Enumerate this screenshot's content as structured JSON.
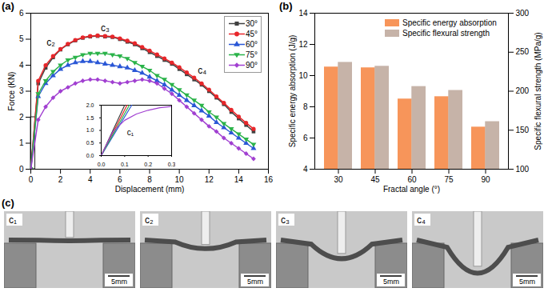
{
  "chart_data": [
    {
      "type": "line",
      "panel_label": "(a)",
      "x_label": "Displacement (mm)",
      "y_label": "Force (KN)",
      "xlim": [
        0,
        16
      ],
      "xticks": [
        0,
        2,
        4,
        6,
        8,
        10,
        12,
        14,
        16
      ],
      "ylim": [
        0,
        6
      ],
      "yticks": [
        0,
        1,
        2,
        3,
        4,
        5,
        6
      ],
      "legend": "top-right",
      "x": [
        0,
        0.5,
        1,
        1.5,
        2,
        2.5,
        3,
        3.5,
        4,
        4.5,
        5,
        5.5,
        6,
        6.5,
        7,
        7.5,
        8,
        8.5,
        9,
        9.5,
        10,
        10.5,
        11,
        11.5,
        12,
        12.5,
        13,
        13.5,
        14,
        14.5,
        15
      ],
      "series": [
        {
          "name": "30°",
          "color": "#404040",
          "marker": "square",
          "values": [
            0,
            3.3,
            3.9,
            4.3,
            4.6,
            4.8,
            4.95,
            5.05,
            5.1,
            5.12,
            5.1,
            5.08,
            5.0,
            4.9,
            4.8,
            4.65,
            4.5,
            4.35,
            4.2,
            4.05,
            3.85,
            3.65,
            3.45,
            3.25,
            3.0,
            2.75,
            2.5,
            2.2,
            1.95,
            1.7,
            1.45
          ]
        },
        {
          "name": "45°",
          "color": "#e8262a",
          "marker": "circle",
          "values": [
            0,
            3.4,
            4.0,
            4.35,
            4.62,
            4.82,
            4.97,
            5.07,
            5.12,
            5.14,
            5.12,
            5.1,
            5.03,
            4.94,
            4.84,
            4.7,
            4.56,
            4.41,
            4.26,
            4.1,
            3.92,
            3.72,
            3.52,
            3.3,
            3.06,
            2.8,
            2.55,
            2.28,
            2.02,
            1.78,
            1.55
          ]
        },
        {
          "name": "60°",
          "color": "#2a57d6",
          "marker": "triangle",
          "values": [
            0,
            2.8,
            3.3,
            3.6,
            3.85,
            4.0,
            4.1,
            4.15,
            4.15,
            4.1,
            4.05,
            4.0,
            3.95,
            3.9,
            3.8,
            3.7,
            3.55,
            3.4,
            3.25,
            3.05,
            2.85,
            2.65,
            2.45,
            2.25,
            2.05,
            1.8,
            1.6,
            1.4,
            1.2,
            1.0,
            0.8
          ]
        },
        {
          "name": "75°",
          "color": "#2bb34a",
          "marker": "triangle-down",
          "values": [
            0,
            2.9,
            3.4,
            3.75,
            4.0,
            4.2,
            4.3,
            4.4,
            4.45,
            4.45,
            4.45,
            4.4,
            4.35,
            4.25,
            4.1,
            3.95,
            3.8,
            3.6,
            3.45,
            3.25,
            3.05,
            2.85,
            2.65,
            2.45,
            2.2,
            2.0,
            1.75,
            1.55,
            1.35,
            1.15,
            0.95
          ]
        },
        {
          "name": "90°",
          "color": "#a13fd1",
          "marker": "diamond",
          "values": [
            0,
            1.9,
            2.4,
            2.75,
            3.0,
            3.15,
            3.3,
            3.4,
            3.45,
            3.45,
            3.4,
            3.35,
            3.3,
            3.35,
            3.4,
            3.45,
            3.4,
            3.3,
            3.1,
            2.9,
            2.65,
            2.4,
            2.15,
            1.9,
            1.65,
            1.45,
            1.2,
            1.0,
            0.8,
            0.6,
            0.4
          ]
        }
      ],
      "annotations": [
        {
          "text": "c₂",
          "x": 2,
          "y": 4.6
        },
        {
          "text": "c₃",
          "x": 5,
          "y": 5.12
        },
        {
          "text": "c₄",
          "x": 11,
          "y": 3.5
        }
      ]
    },
    {
      "type": "line",
      "xlim": [
        0,
        0.3
      ],
      "xticks": [
        {
          "value": 0,
          "label": "0.0"
        },
        0.1,
        0.2,
        0.3
      ],
      "ylim": [
        0,
        2
      ],
      "yticks": [
        {
          "value": 0,
          "label": "0.0"
        },
        0.5,
        {
          "value": 1,
          "label": "1.0"
        },
        1.5,
        {
          "value": 2,
          "label": "2.0"
        }
      ],
      "series": [
        {
          "name": "30°",
          "color": "#404040",
          "x": [
            0,
            0.1
          ],
          "values": [
            0,
            2.0
          ]
        },
        {
          "name": "45°",
          "color": "#e8262a",
          "x": [
            0,
            0.11
          ],
          "values": [
            0,
            2.0
          ]
        },
        {
          "name": "60°",
          "color": "#2a57d6",
          "x": [
            0,
            0.13
          ],
          "values": [
            0,
            2.0
          ]
        },
        {
          "name": "75°",
          "color": "#2bb34a",
          "x": [
            0,
            0.12
          ],
          "values": [
            0,
            2.0
          ]
        },
        {
          "name": "90°",
          "color": "#a13fd1",
          "x": [
            0,
            0.05,
            0.1,
            0.15,
            0.2,
            0.25,
            0.3
          ],
          "values": [
            0,
            0.95,
            1.4,
            1.65,
            1.8,
            1.9,
            1.95
          ]
        }
      ],
      "annotations": [
        {
          "text": "c₁",
          "x": 0.07,
          "y": 1.1
        }
      ]
    },
    {
      "type": "bar",
      "panel_label": "(b)",
      "x_label": "Fractal angle (°)",
      "y_label": "Specific energy absorption (J/g)",
      "y2_label": "Specific flexural strength (MPa/g)",
      "categories": [
        "30",
        "45",
        "60",
        "75",
        "90"
      ],
      "ylim": [
        4,
        14
      ],
      "yticks": [
        4,
        6,
        8,
        10,
        12,
        14
      ],
      "y2lim": [
        100,
        300
      ],
      "y2ticks": [
        100,
        150,
        200,
        250,
        300
      ],
      "legend": "top-right",
      "series": [
        {
          "name": "Specific energy absorption",
          "color": "#f7955a",
          "values": [
            10.55,
            10.5,
            8.5,
            8.65,
            6.7
          ]
        },
        {
          "name": "Specific flexural strength",
          "color": "#c6b3a8",
          "axis": "y2",
          "values": [
            237,
            232,
            206,
            201,
            161
          ]
        }
      ]
    }
  ],
  "photos": {
    "panel_label": "(c)",
    "images": [
      {
        "label": "c₁",
        "scale_bar": "5mm"
      },
      {
        "label": "c₂",
        "scale_bar": "5mm"
      },
      {
        "label": "c₃",
        "scale_bar": "5mm"
      },
      {
        "label": "c₄",
        "scale_bar": "5mm"
      }
    ]
  }
}
